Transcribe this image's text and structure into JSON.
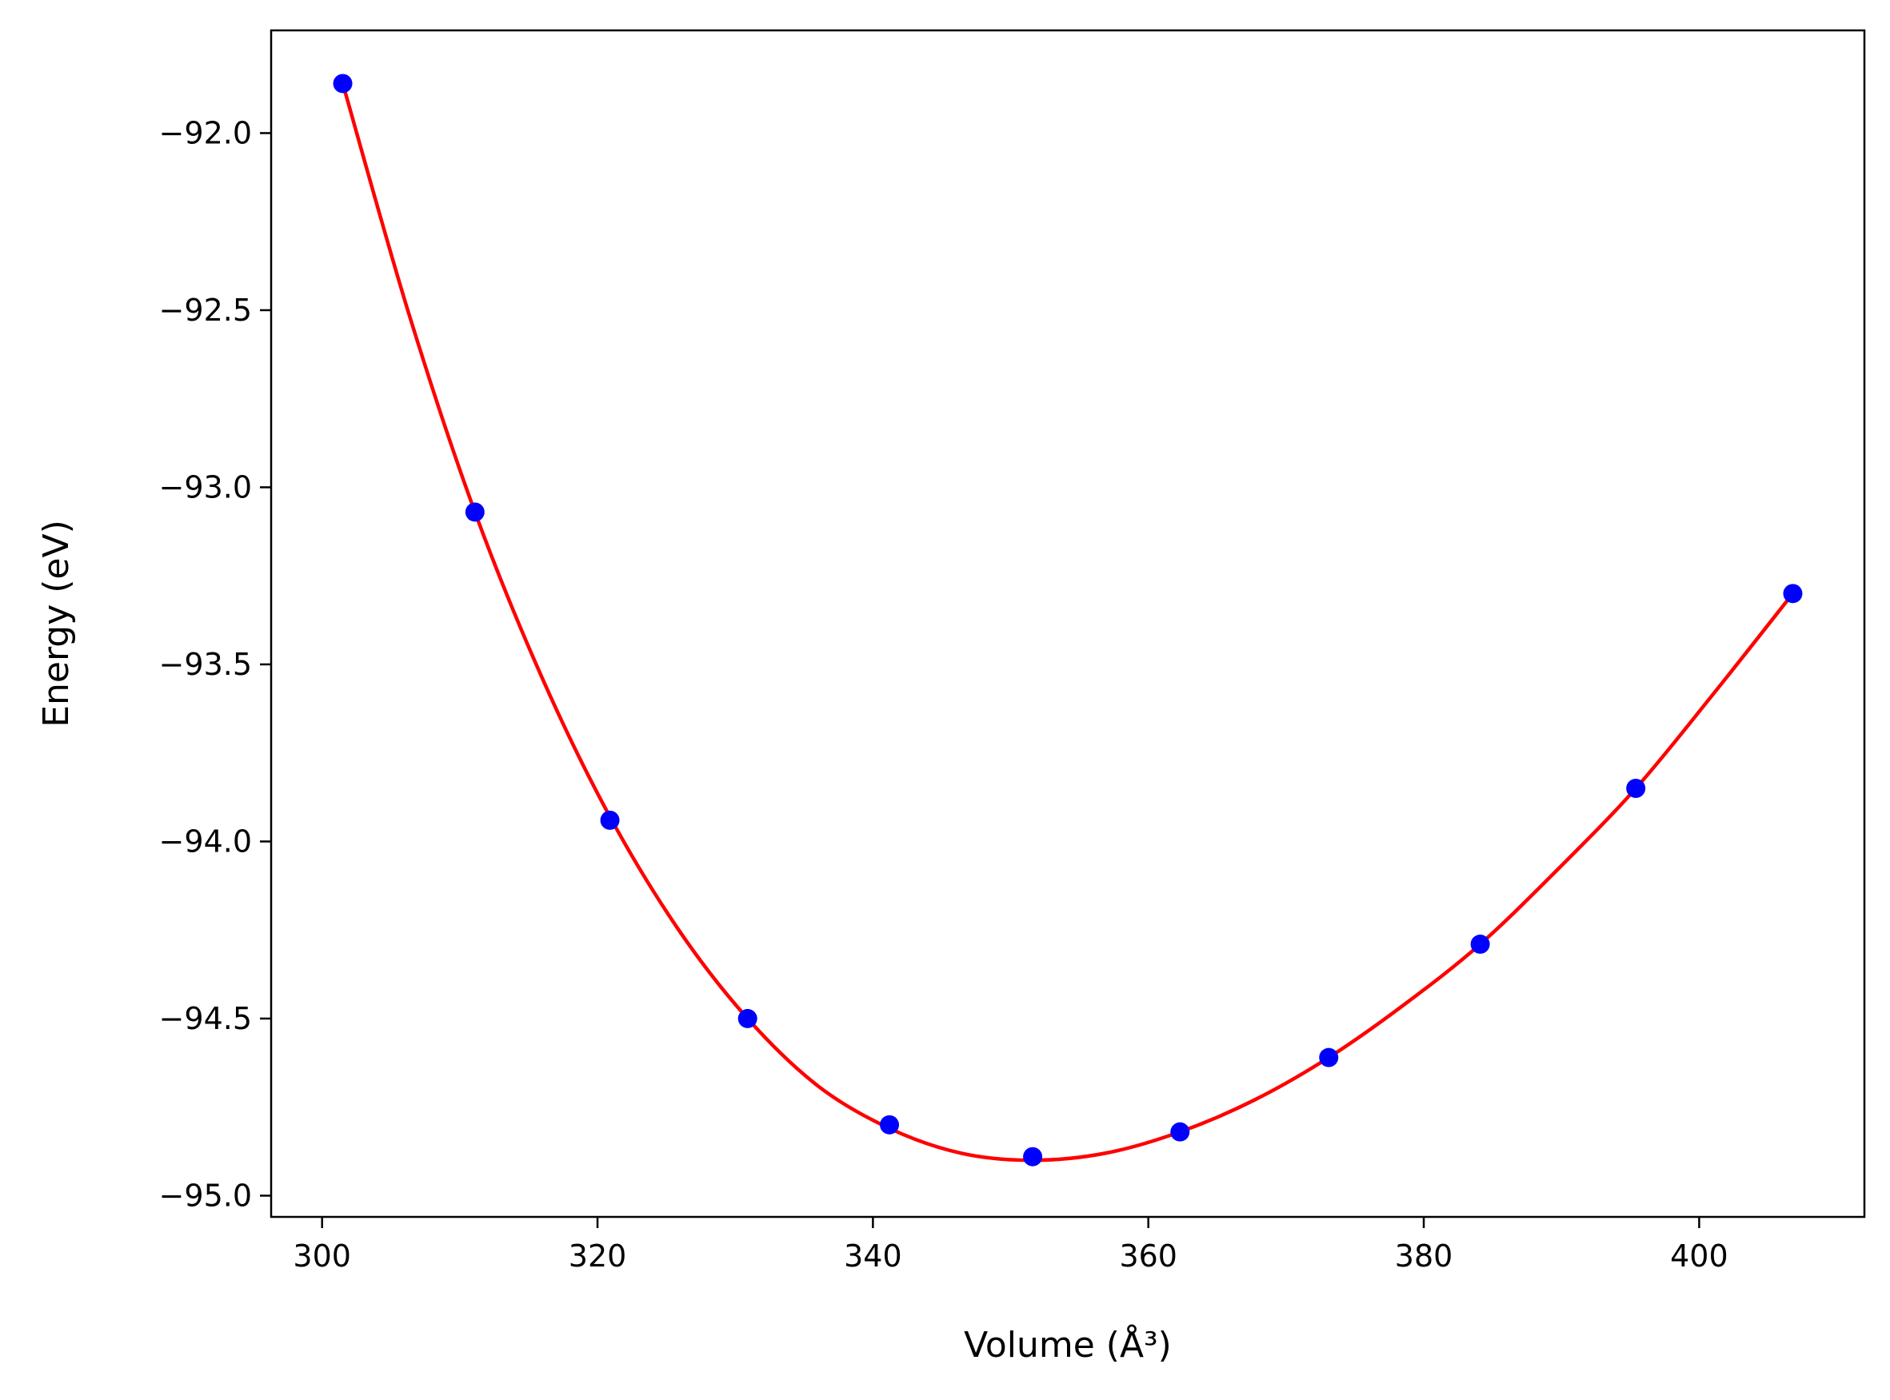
{
  "chart_data": {
    "type": "scatter",
    "title": "",
    "xlabel": "Volume (Å³)",
    "ylabel": "Energy (eV)",
    "xlim": [
      296.3,
      412.0
    ],
    "ylim": [
      -95.06,
      -91.71
    ],
    "x_ticks": [
      300,
      320,
      340,
      360,
      380,
      400
    ],
    "y_ticks": [
      -92.0,
      -92.5,
      -93.0,
      -93.5,
      -94.0,
      -94.5,
      -95.0
    ],
    "x_tick_labels": [
      "300",
      "320",
      "340",
      "360",
      "380",
      "400"
    ],
    "y_tick_labels": [
      "−92.0",
      "−92.5",
      "−93.0",
      "−93.5",
      "−94.0",
      "−94.5",
      "−95.0"
    ],
    "grid": false,
    "legend": "none",
    "series": [
      {
        "kind": "points",
        "color": "#0000ff",
        "x": [
          301.5,
          311.1,
          320.9,
          330.9,
          341.2,
          351.6,
          362.3,
          373.1,
          384.1,
          395.4,
          406.8
        ],
        "y": [
          -91.86,
          -93.07,
          -93.94,
          -94.5,
          -94.8,
          -94.89,
          -94.82,
          -94.61,
          -94.29,
          -93.85,
          -93.3
        ]
      },
      {
        "kind": "line",
        "color": "#ff0000",
        "x": [
          301.5,
          306.3,
          311.1,
          316.0,
          320.9,
          325.9,
          330.9,
          336.0,
          341.2,
          346.4,
          351.6,
          356.9,
          362.3,
          367.7,
          373.1,
          378.6,
          384.1,
          389.7,
          395.4,
          401.1,
          406.8
        ],
        "y": [
          -91.86,
          -92.51,
          -93.07,
          -93.54,
          -93.93,
          -94.25,
          -94.5,
          -94.69,
          -94.81,
          -94.88,
          -94.9,
          -94.88,
          -94.82,
          -94.73,
          -94.61,
          -94.46,
          -94.29,
          -94.08,
          -93.85,
          -93.58,
          -93.3
        ]
      }
    ]
  }
}
